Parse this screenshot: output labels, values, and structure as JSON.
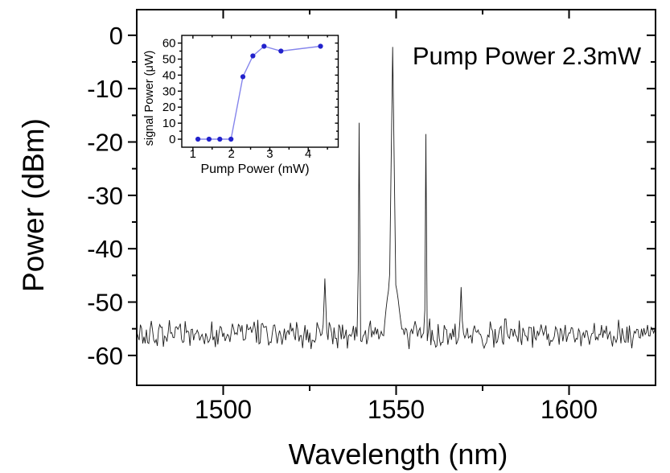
{
  "figure": {
    "background": "#ffffff",
    "annotation": "Pump Power 2.3mW"
  },
  "chart_data": [
    {
      "id": "main-spectrum",
      "type": "line",
      "title": "",
      "xlabel": "Wavelength (nm)",
      "ylabel": "Power (dBm)",
      "annotation": "Pump Power 2.3mW",
      "xlim": [
        1475,
        1625
      ],
      "ylim": [
        -65.6,
        4.8
      ],
      "x_major_ticks": [
        1500,
        1550,
        1600
      ],
      "x_minor_ticks": [
        1525,
        1575
      ],
      "y_major_ticks": [
        0,
        -10,
        -20,
        -30,
        -40,
        -50,
        -60
      ],
      "y_minor_ticks": [
        -5,
        -15,
        -25,
        -35,
        -45,
        -55
      ],
      "grid": false,
      "legend": null,
      "line_color": "#1b1b1b",
      "noise_floor": {
        "mean_dbm": -56,
        "amplitude_db": 3.0,
        "sample_step_nm": 0.35
      },
      "peaks": [
        {
          "wavelength_nm": 1529.4,
          "peak_dbm": -45.6,
          "slope_db_per_nm": 18
        },
        {
          "wavelength_nm": 1539.3,
          "peak_dbm": -16.4,
          "slope_db_per_nm": 110
        },
        {
          "wavelength_nm": 1549.0,
          "peak_dbm": -2.2,
          "slope_db_per_nm": 50,
          "pedestal": {
            "level_dbm": -45.5,
            "curvature_db_per_nm2": 1.6
          }
        },
        {
          "wavelength_nm": 1558.6,
          "peak_dbm": -18.5,
          "slope_db_per_nm": 110
        },
        {
          "wavelength_nm": 1568.8,
          "peak_dbm": -47.2,
          "slope_db_per_nm": 18
        }
      ]
    },
    {
      "id": "inset-threshold",
      "type": "line",
      "markers": true,
      "title": "",
      "xlabel": "Pump Power (mW)",
      "ylabel": "signal Power (μW)",
      "xlim": [
        0.71,
        4.78
      ],
      "ylim": [
        -5,
        64.8
      ],
      "x_major_ticks": [
        1,
        2,
        3,
        4
      ],
      "x_minor_ticks": [
        1.5,
        2.5,
        3.5,
        4.5
      ],
      "y_major_ticks": [
        0,
        10,
        20,
        30,
        40,
        50,
        60
      ],
      "y_minor_ticks": [
        5,
        15,
        25,
        35,
        45,
        55
      ],
      "grid": false,
      "legend": null,
      "marker_color": "#2222cc",
      "line_color": "#8585ec",
      "x": [
        1.13,
        1.42,
        1.7,
        1.99,
        2.3,
        2.56,
        2.85,
        3.29,
        4.32
      ],
      "y": [
        0,
        0,
        0,
        0,
        39,
        52,
        58,
        55,
        58
      ]
    }
  ]
}
